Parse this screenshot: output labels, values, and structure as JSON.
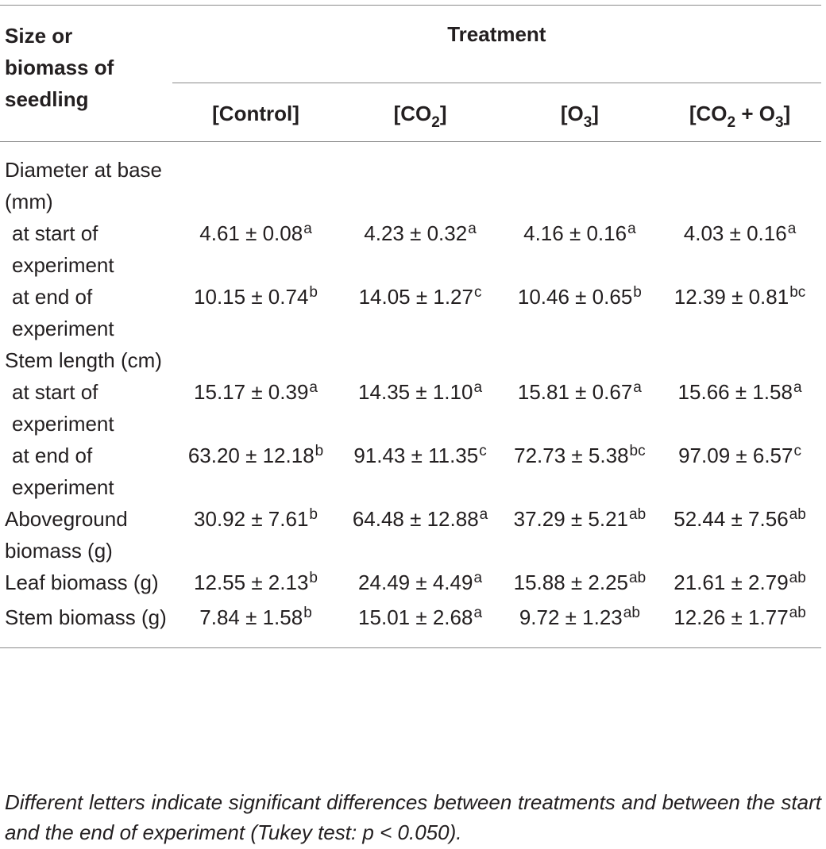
{
  "table": {
    "header": {
      "row_header": "Size or biomass of seedling",
      "group_header": "Treatment",
      "columns": [
        {
          "main": "[Control]",
          "parts": []
        },
        {
          "parts": [
            {
              "t": "[CO"
            },
            {
              "sub": "2"
            },
            {
              "t": "]"
            }
          ]
        },
        {
          "parts": [
            {
              "t": "[O"
            },
            {
              "sub": "3"
            },
            {
              "t": "]"
            }
          ]
        },
        {
          "parts": [
            {
              "t": "[CO"
            },
            {
              "sub": "2"
            },
            {
              "t": " + O"
            },
            {
              "sub": "3"
            },
            {
              "t": "]"
            }
          ]
        }
      ]
    },
    "rows": [
      {
        "label": "Diameter at base (mm)",
        "indent": false,
        "cells": []
      },
      {
        "label": "at start of experiment",
        "indent": true,
        "cells": [
          {
            "value": "4.61 ± 0.08",
            "sup": "a"
          },
          {
            "value": "4.23 ± 0.32",
            "sup": "a"
          },
          {
            "value": "4.16 ± 0.16",
            "sup": "a"
          },
          {
            "value": "4.03 ± 0.16",
            "sup": "a"
          }
        ]
      },
      {
        "label": "at end of experiment",
        "indent": true,
        "cells": [
          {
            "value": "10.15 ± 0.74",
            "sup": "b"
          },
          {
            "value": "14.05 ± 1.27",
            "sup": "c"
          },
          {
            "value": "10.46 ± 0.65",
            "sup": "b"
          },
          {
            "value": "12.39 ± 0.81",
            "sup": "bc"
          }
        ]
      },
      {
        "label": "Stem length (cm)",
        "indent": false,
        "cells": []
      },
      {
        "label": "at start of experiment",
        "indent": true,
        "cells": [
          {
            "value": "15.17 ± 0.39",
            "sup": "a"
          },
          {
            "value": "14.35 ± 1.10",
            "sup": "a"
          },
          {
            "value": "15.81 ± 0.67",
            "sup": "a"
          },
          {
            "value": "15.66 ± 1.58",
            "sup": "a"
          }
        ]
      },
      {
        "label": "at end of experiment",
        "indent": true,
        "cells": [
          {
            "value": "63.20 ± 12.18",
            "sup": "b"
          },
          {
            "value": "91.43 ± 11.35",
            "sup": "c"
          },
          {
            "value": "72.73 ± 5.38",
            "sup": "bc"
          },
          {
            "value": "97.09 ± 6.57",
            "sup": "c"
          }
        ]
      },
      {
        "label": "Aboveground biomass (g)",
        "indent": false,
        "cells": [
          {
            "value": "30.92 ± 7.61",
            "sup": "b"
          },
          {
            "value": "64.48 ± 12.88",
            "sup": "a"
          },
          {
            "value": "37.29 ± 5.21",
            "sup": "ab"
          },
          {
            "value": "52.44 ± 7.56",
            "sup": "ab"
          }
        ]
      },
      {
        "label": "Leaf biomass (g)",
        "indent": false,
        "cells": [
          {
            "value": "12.55 ± 2.13",
            "sup": "b"
          },
          {
            "value": "24.49 ± 4.49",
            "sup": "a"
          },
          {
            "value": "15.88 ± 2.25",
            "sup": "ab"
          },
          {
            "value": "21.61 ± 2.79",
            "sup": "ab"
          }
        ]
      },
      {
        "label": "Stem biomass (g)",
        "indent": false,
        "cells": [
          {
            "value": "7.84 ± 1.58",
            "sup": "b"
          },
          {
            "value": "15.01 ± 2.68",
            "sup": "a"
          },
          {
            "value": "9.72 ± 1.23",
            "sup": "ab"
          },
          {
            "value": "12.26 ± 1.77",
            "sup": "ab"
          }
        ]
      }
    ]
  },
  "footnote": "Different letters indicate significant differences between treatments and between the start and the end of experiment (Tukey test: p < 0.050)."
}
